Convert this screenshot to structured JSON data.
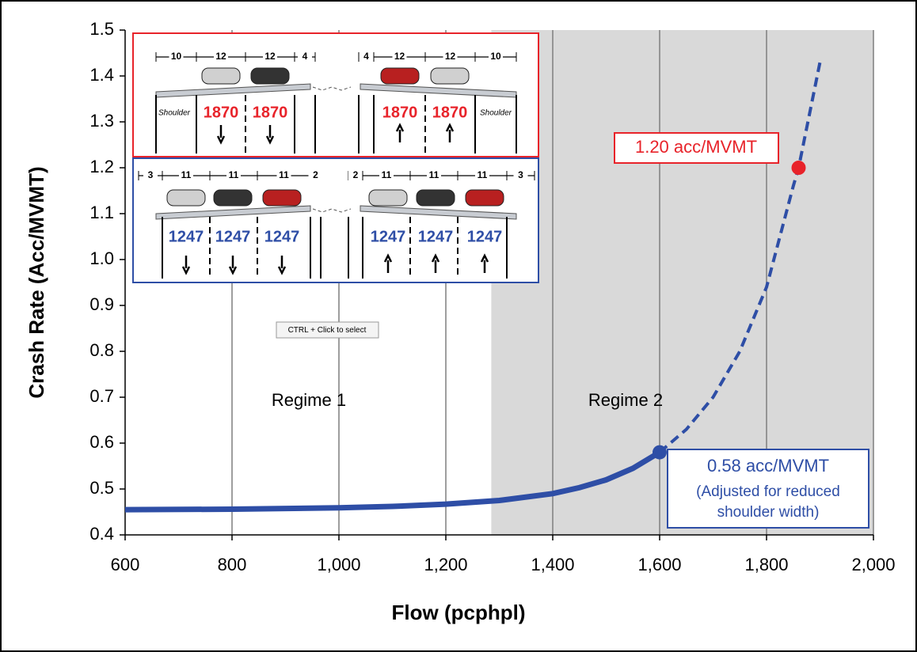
{
  "chart_data": {
    "type": "line",
    "xlabel": "Flow (pcphpl)",
    "ylabel": "Crash Rate (Acc/MVMT)",
    "xlim": [
      600,
      2000
    ],
    "ylim": [
      0.4,
      1.5
    ],
    "xticks": [
      600,
      800,
      {
        "value": 1000,
        "label": "1,000"
      },
      {
        "value": 1200,
        "label": "1,200"
      },
      {
        "value": 1400,
        "label": "1,400"
      },
      {
        "value": 1600,
        "label": "1,600"
      },
      {
        "value": 1800,
        "label": "1,800"
      },
      {
        "value": 2000,
        "label": "2,000"
      }
    ],
    "yticks": [
      0.4,
      0.5,
      0.6,
      0.7,
      0.8,
      0.9,
      {
        "value": 1,
        "label": "1.0"
      },
      1.1,
      1.2,
      1.3,
      1.4,
      1.5
    ],
    "grid": "x",
    "shaded_region": {
      "x": [
        1285,
        2000
      ],
      "color": "#d9d9d9"
    },
    "series": [
      {
        "color": "#2e4ea6",
        "style": "solid",
        "x": [
          600,
          800,
          1000,
          1100,
          1200,
          1300,
          1400,
          1450,
          1500,
          1550,
          1600
        ],
        "values": [
          0.455,
          0.456,
          0.459,
          0.462,
          0.467,
          0.475,
          0.49,
          0.503,
          0.52,
          0.545,
          0.58
        ]
      },
      {
        "color": "#2e4ea6",
        "style": "dashed",
        "x": [
          1600,
          1650,
          1700,
          1750,
          1800,
          1850,
          1860,
          1900
        ],
        "values": [
          0.58,
          0.63,
          0.7,
          0.8,
          0.94,
          1.16,
          1.2,
          1.43
        ]
      }
    ],
    "points": [
      {
        "x": 1600,
        "y": 0.58,
        "color": "#2e4ea6",
        "label": "0.58 acc/MVMT",
        "note": [
          "(Adjusted for reduced",
          "shoulder width)"
        ]
      },
      {
        "x": 1860,
        "y": 1.2,
        "color": "#e8232a",
        "label": "1.20 acc/MVMT"
      }
    ],
    "annotations": [
      "Regime 1",
      "Regime 2"
    ],
    "tooltip": "CTRL + Click to select",
    "inset": {
      "top": {
        "widths": [
          10,
          12,
          12,
          4,
          4,
          12,
          12,
          10
        ],
        "volumes": [
          1870,
          1870,
          1870,
          1870
        ],
        "shoulder": "Shoulder",
        "color": "#e8232a"
      },
      "bottom": {
        "widths": [
          3,
          11,
          11,
          11,
          2,
          2,
          11,
          11,
          11,
          3
        ],
        "volumes": [
          1247,
          1247,
          1247,
          1247,
          1247,
          1247
        ],
        "color": "#2e4ea6"
      }
    }
  }
}
